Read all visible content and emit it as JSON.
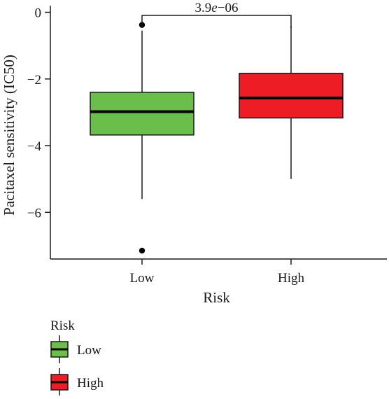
{
  "chart_data": {
    "type": "boxplot",
    "xlabel": "Risk",
    "ylabel": "Pacitaxel sensitivity (IC50)",
    "categories": [
      "Low",
      "High"
    ],
    "ylim": [
      -7.4,
      0.2
    ],
    "yticks": [
      0,
      -2,
      -4,
      -6
    ],
    "ytick_labels": [
      "0",
      "−2",
      "−4",
      "−6"
    ],
    "grid": false,
    "series": [
      {
        "category": "Low",
        "color": "#6abf4b",
        "whisker_low": -5.6,
        "q1": -3.68,
        "median": -2.98,
        "q3": -2.4,
        "whisker_high": -0.55,
        "outliers": [
          -0.38,
          -7.15
        ]
      },
      {
        "category": "High",
        "color": "#ee1c25",
        "whisker_low": -5.0,
        "q1": -3.17,
        "median": -2.57,
        "q3": -1.83,
        "whisker_high": -0.42,
        "outliers": []
      }
    ],
    "comparison": {
      "groups": [
        "Low",
        "High"
      ],
      "label_mantissa": "3.9",
      "label_e": "e",
      "label_exponent": "−06"
    },
    "legend": {
      "title": "Risk",
      "placement": "bottom-left",
      "entries": [
        {
          "label": "Low",
          "color": "#6abf4b"
        },
        {
          "label": "High",
          "color": "#ee1c25"
        }
      ]
    }
  }
}
